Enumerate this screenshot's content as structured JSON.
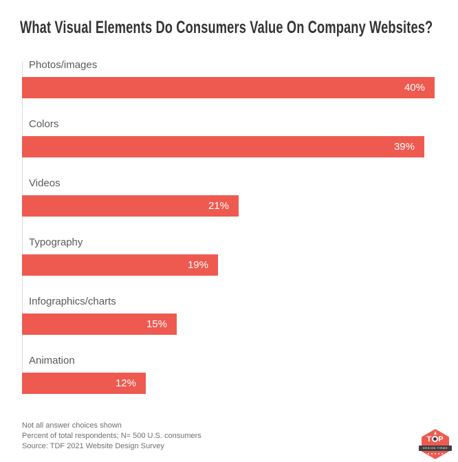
{
  "title": "What Visual Elements Do Consumers Value On Company Websites?",
  "chart_data": {
    "type": "bar",
    "orientation": "horizontal",
    "title": "What Visual Elements Do Consumers Value On Company Websites?",
    "categories": [
      "Photos/images",
      "Colors",
      "Videos",
      "Typography",
      "Infographics/charts",
      "Animation"
    ],
    "values": [
      40,
      39,
      21,
      19,
      15,
      12
    ],
    "value_labels": [
      "40%",
      "39%",
      "21%",
      "19%",
      "15%",
      "12%"
    ],
    "xlabel": "",
    "ylabel": "",
    "xlim": [
      0,
      40
    ],
    "grid": false,
    "legend": false,
    "bar_color": "#ee5a50",
    "value_label_color": "#ffffff",
    "category_label_color": "#595959"
  },
  "footer": {
    "lines": [
      "Not all answer choices shown",
      "Percent of total respondents; N= 500 U.S. consumers",
      "Source: TDF 2021 Website Design Survey"
    ]
  },
  "logo": {
    "top_text": "TOP",
    "ribbon_text": "DESIGN FIRMS"
  },
  "colors": {
    "accent": "#ee5a50",
    "title_text": "#333333",
    "label_text": "#595959",
    "footer_text": "#6e6e6e",
    "axis_line": "#dcdcdc",
    "ribbon": "#3f3f3f",
    "background": "#ffffff"
  }
}
